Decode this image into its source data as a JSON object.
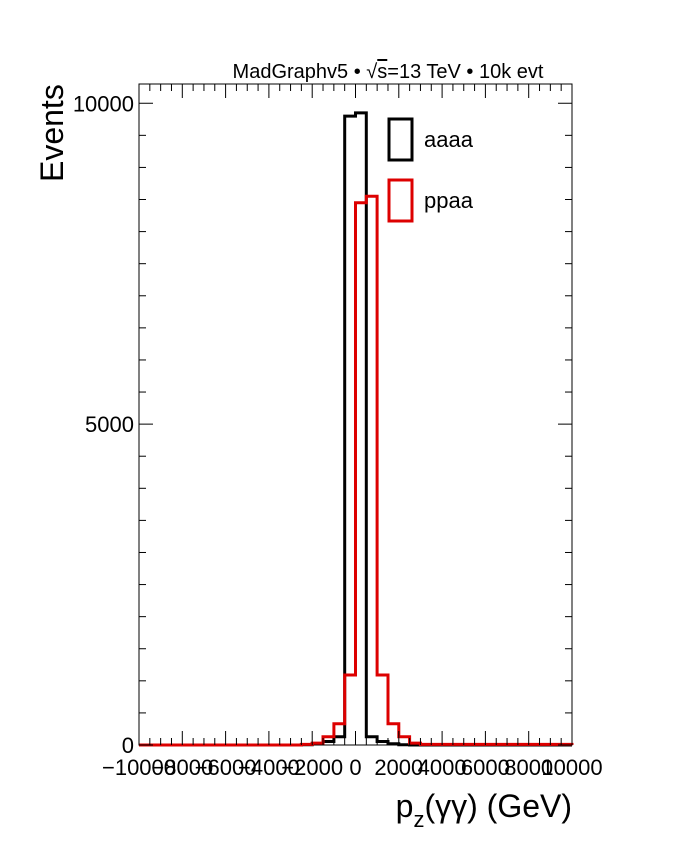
{
  "chart_data": {
    "type": "histogram",
    "title": "MadGraphv5 • √s=13 TeV • 10k evt",
    "title_parts": {
      "prefix": "MadGraphv5 • ",
      "sqrt": "√",
      "s": "s",
      "suffix": "=13 TeV • 10k evt"
    },
    "xlabel": "p_z(γγ) (GeV)",
    "xlabel_parts": {
      "p": "p",
      "sub": "z",
      "rest": "(γγ) (GeV)"
    },
    "ylabel": "Events",
    "xlim": [
      -10000,
      10000
    ],
    "ylim": [
      0,
      10300
    ],
    "xticks": [
      -10000,
      -8000,
      -6000,
      -4000,
      -2000,
      0,
      2000,
      4000,
      6000,
      8000,
      10000
    ],
    "xtick_labels": [
      "−10000",
      "−8000",
      "−6000",
      "−4000",
      "−2000",
      "0",
      "2000",
      "4000",
      "6000",
      "8000",
      "10000"
    ],
    "yticks": [
      0,
      5000,
      10000
    ],
    "ytick_labels": [
      "0",
      "5000",
      "10000"
    ],
    "bin_edges": [
      -10000,
      -2500,
      -2000,
      -1500,
      -1000,
      -500,
      0,
      500,
      1000,
      1500,
      2000,
      2500,
      3000,
      10000
    ],
    "series": [
      {
        "name": "aaaa",
        "color": "#000000",
        "values": [
          0,
          5,
          20,
          55,
          130,
          9800,
          9850,
          130,
          55,
          20,
          5,
          0,
          0
        ]
      },
      {
        "name": "ppaa",
        "color": "#dd0000",
        "values": [
          0,
          10,
          30,
          130,
          330,
          1090,
          8450,
          8550,
          1090,
          330,
          130,
          30,
          10
        ]
      }
    ],
    "legend": {
      "position": "top-right",
      "entries": [
        "aaaa",
        "ppaa"
      ]
    }
  }
}
